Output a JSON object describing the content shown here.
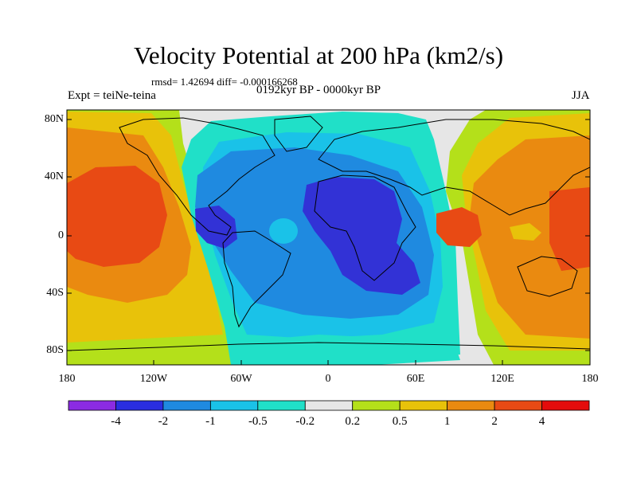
{
  "title": "Velocity Potential at 200 hPa (km2/s)",
  "stats_line": "rmsd= 1.42694 diff= -0.000166268",
  "experiment_label": "Expt = teiNe-teina",
  "period_label": "0192kyr BP - 0000kyr BP",
  "season_label": "JJA",
  "lat_ticks": [
    "80N",
    "40N",
    "0",
    "40S",
    "80S"
  ],
  "lon_ticks": [
    "180",
    "120W",
    "60W",
    "0",
    "60E",
    "120E",
    "180"
  ],
  "colorbar": {
    "labels": [
      "-4",
      "-2",
      "-1",
      "-0.5",
      "-0.2",
      "0.2",
      "0.5",
      "1",
      "2",
      "4"
    ],
    "colors": [
      "#8b2be2",
      "#2a2ee0",
      "#1f8ae0",
      "#1ac2e8",
      "#20e0c8",
      "#e6e6e6",
      "#b4e01a",
      "#e8c20a",
      "#ea8a10",
      "#e84a14",
      "#e40c0c"
    ]
  },
  "field_colors": {
    "strong_negative": "#3232d6",
    "negative": "#1f8ae0",
    "weak_negative": "#1ac2e8",
    "near_zero_negative": "#20e0c8",
    "neutral": "#e6e6e6",
    "weak_positive": "#b4e01a",
    "positive": "#e8c20a",
    "moderate_positive": "#ea8a10",
    "strong_positive": "#e84a14",
    "extreme_positive": "#e40c0c"
  }
}
